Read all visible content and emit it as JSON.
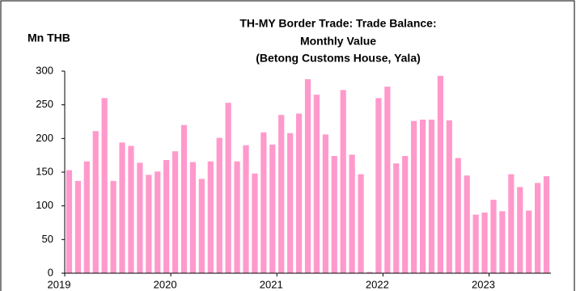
{
  "chart_data": {
    "type": "bar",
    "title": "TH-MY Border Trade: Trade Balance:",
    "subtitle": [
      "Monthly Value",
      "(Betong Customs House, Yala)"
    ],
    "y_label": "Mn THB",
    "categories": [
      "2019",
      null,
      null,
      null,
      null,
      null,
      null,
      null,
      null,
      null,
      null,
      null,
      "2020",
      null,
      null,
      null,
      null,
      null,
      null,
      null,
      null,
      null,
      null,
      null,
      "2021",
      null,
      null,
      null,
      null,
      null,
      null,
      null,
      null,
      null,
      null,
      null,
      "2022",
      null,
      null,
      null,
      null,
      null,
      null,
      null,
      null,
      null,
      null,
      null,
      "2023",
      null,
      null,
      null,
      null,
      null,
      null
    ],
    "values": [
      153,
      137,
      166,
      211,
      260,
      137,
      194,
      189,
      164,
      146,
      151,
      168,
      181,
      220,
      165,
      140,
      166,
      201,
      253,
      166,
      190,
      148,
      209,
      191,
      235,
      208,
      237,
      288,
      265,
      206,
      174,
      272,
      176,
      147,
      2,
      260,
      277,
      163,
      174,
      226,
      228,
      228,
      293,
      227,
      171,
      145,
      87,
      90,
      109,
      92,
      147,
      128,
      93,
      134,
      144
    ],
    "color": "#ff99cc",
    "ylim": [
      0,
      300
    ],
    "yticks": [
      0,
      50,
      100,
      150,
      200,
      250,
      300
    ],
    "grid": false
  }
}
